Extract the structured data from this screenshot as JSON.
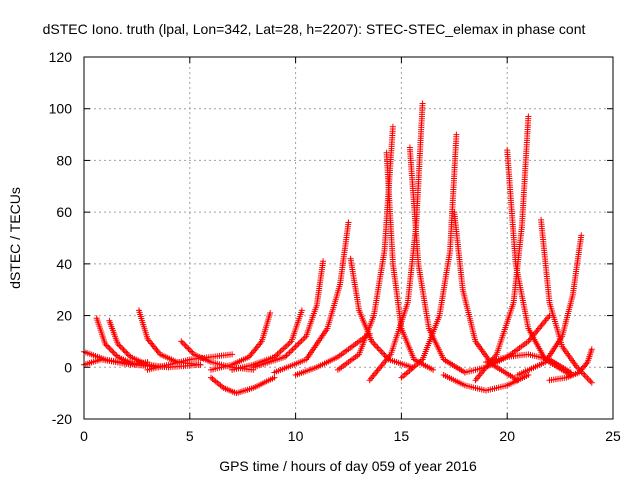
{
  "chart_data": {
    "type": "scatter",
    "title": "dSTEC Iono. truth (lpal, Lon=342, Lat=28, h=2207): STEC-STEC_elemax in phase cont",
    "xlabel": "GPS time / hours of day 059 of year 2016",
    "ylabel": "dSTEC  / TECUs",
    "xlim": [
      0,
      25
    ],
    "ylim": [
      -20,
      120
    ],
    "xticks": [
      0,
      5,
      10,
      15,
      20,
      25
    ],
    "yticks": [
      -20,
      0,
      20,
      40,
      60,
      80,
      100,
      120
    ],
    "grid": true,
    "marker": "+",
    "color": "#ff0000",
    "arcs": [
      {
        "x": [
          0.0,
          0.8,
          1.5,
          2.2,
          3.0
        ],
        "y": [
          1,
          3,
          2,
          1,
          2
        ]
      },
      {
        "x": [
          0.0,
          1.0,
          2.5,
          4.0,
          5.5
        ],
        "y": [
          6,
          3,
          1,
          0,
          1
        ]
      },
      {
        "x": [
          0.6,
          1.0,
          1.6,
          2.4,
          3.5
        ],
        "y": [
          19,
          9,
          4,
          1,
          0
        ]
      },
      {
        "x": [
          1.2,
          1.6,
          2.2,
          3.0,
          4.0
        ],
        "y": [
          18,
          9,
          4,
          1,
          0
        ]
      },
      {
        "x": [
          2.6,
          3.0,
          3.6,
          4.4,
          5.5
        ],
        "y": [
          22,
          11,
          5,
          2,
          1
        ]
      },
      {
        "x": [
          3.0,
          4.0,
          5.0,
          6.0,
          7.0
        ],
        "y": [
          -1,
          1,
          3,
          4,
          5
        ]
      },
      {
        "x": [
          4.6,
          5.2,
          6.0,
          7.0,
          8.0
        ],
        "y": [
          10,
          5,
          2,
          0,
          -1
        ]
      },
      {
        "x": [
          6.0,
          6.6,
          7.2,
          8.0,
          9.0
        ],
        "y": [
          -4,
          -8,
          -10,
          -8,
          -4
        ]
      },
      {
        "x": [
          6.0,
          7.0,
          7.8,
          8.4,
          8.8
        ],
        "y": [
          -1,
          1,
          4,
          10,
          21
        ]
      },
      {
        "x": [
          7.0,
          8.0,
          9.0,
          9.8,
          10.3
        ],
        "y": [
          -1,
          1,
          4,
          10,
          22
        ]
      },
      {
        "x": [
          8.0,
          9.5,
          10.5,
          11.0,
          11.3
        ],
        "y": [
          0,
          4,
          12,
          24,
          41
        ]
      },
      {
        "x": [
          9.0,
          10.5,
          11.5,
          12.1,
          12.5
        ],
        "y": [
          -2,
          3,
          15,
          32,
          56
        ]
      },
      {
        "x": [
          10.0,
          11.0,
          12.0,
          13.0,
          13.5
        ],
        "y": [
          -3,
          0,
          4,
          10,
          13
        ]
      },
      {
        "x": [
          12.6,
          13.0,
          13.6,
          14.4,
          15.5
        ],
        "y": [
          42,
          22,
          10,
          3,
          0
        ]
      },
      {
        "x": [
          12.0,
          13.0,
          13.7,
          14.2,
          14.6
        ],
        "y": [
          -1,
          5,
          20,
          45,
          93
        ]
      },
      {
        "x": [
          14.3,
          14.6,
          15.0,
          15.6,
          16.5
        ],
        "y": [
          83,
          40,
          15,
          3,
          -1
        ]
      },
      {
        "x": [
          13.5,
          14.5,
          15.3,
          15.7,
          16.0
        ],
        "y": [
          -5,
          5,
          25,
          55,
          102
        ]
      },
      {
        "x": [
          15.4,
          15.8,
          16.3,
          17.0,
          18.0
        ],
        "y": [
          85,
          40,
          15,
          3,
          -2
        ]
      },
      {
        "x": [
          15.0,
          16.0,
          16.8,
          17.3,
          17.6
        ],
        "y": [
          -4,
          3,
          20,
          45,
          90
        ]
      },
      {
        "x": [
          17.5,
          17.9,
          18.5,
          19.3,
          20.5
        ],
        "y": [
          60,
          30,
          10,
          1,
          -5
        ]
      },
      {
        "x": [
          17.0,
          18.0,
          19.0,
          20.0,
          21.0
        ],
        "y": [
          -3,
          -7,
          -9,
          -7,
          -3
        ]
      },
      {
        "x": [
          18.5,
          19.5,
          20.3,
          20.7,
          21.0
        ],
        "y": [
          -5,
          5,
          25,
          55,
          97
        ]
      },
      {
        "x": [
          20.0,
          20.4,
          21.0,
          21.8,
          23.0
        ],
        "y": [
          84,
          40,
          15,
          3,
          -3
        ]
      },
      {
        "x": [
          19.0,
          20.0,
          21.0,
          22.0,
          23.0
        ],
        "y": [
          2,
          4,
          5,
          3,
          -2
        ]
      },
      {
        "x": [
          21.6,
          22.0,
          22.6,
          23.3,
          24.0
        ],
        "y": [
          57,
          25,
          8,
          0,
          -6
        ]
      },
      {
        "x": [
          20.5,
          21.8,
          22.6,
          23.1,
          23.5
        ],
        "y": [
          -3,
          2,
          12,
          28,
          51
        ]
      },
      {
        "x": [
          18.0,
          19.0,
          20.0,
          21.0,
          22.0
        ],
        "y": [
          -2,
          0,
          4,
          10,
          20
        ]
      },
      {
        "x": [
          22.0,
          22.8,
          23.4,
          23.8,
          24.0
        ],
        "y": [
          -5,
          -4,
          -2,
          2,
          7
        ]
      }
    ]
  }
}
